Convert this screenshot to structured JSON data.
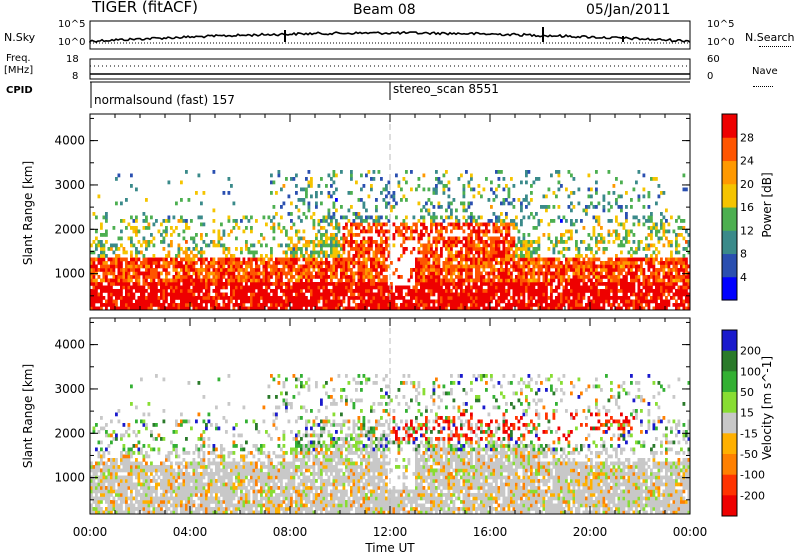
{
  "header": {
    "radar": "TIGER (fitACF)",
    "beam": "Beam 08",
    "date": "05/Jan/2011"
  },
  "params": {
    "nsky_label": "N.Sky",
    "nsearch_label": "N.Search",
    "nsky_ticks": [
      "10^5",
      "10^0"
    ],
    "nsearch_ticks": [
      "10^5",
      "10^0"
    ],
    "freq_label": "Freq.",
    "freq_unit": "[MHz]",
    "freq_ticks": [
      "18",
      "8"
    ],
    "nave_label": "Nave",
    "nave_ticks": [
      "60",
      "0"
    ],
    "cpid_label": "CPID",
    "cpid_segments": [
      {
        "name": "normalsound (fast) 157",
        "start_hour": 0
      },
      {
        "name": "stereo_scan 8551",
        "start_hour": 12
      }
    ]
  },
  "colors": {
    "power_scale": [
      "#0000ff",
      "#2a4fb0",
      "#3a8a8a",
      "#4caf50",
      "#f5c400",
      "#ff9900",
      "#ff5500",
      "#ee0000"
    ],
    "velocity_scale": [
      "#1a1acc",
      "#2a7a2a",
      "#33b033",
      "#88dd33",
      "#c8c8c8",
      "#ffb000",
      "#ff8000",
      "#ff3300",
      "#ee0000"
    ]
  },
  "chart_data": [
    {
      "type": "heatmap",
      "ylabel": "Slant Range [km]",
      "yticks": [
        "1000",
        "2000",
        "3000",
        "4000"
      ],
      "colorbar_label": "Power [dB]",
      "colorbar_ticks": [
        "4",
        "8",
        "12",
        "16",
        "20",
        "24",
        "28"
      ],
      "ylim": [
        180,
        4600
      ],
      "xlim": [
        0,
        24
      ]
    },
    {
      "type": "heatmap",
      "ylabel": "Slant Range [km]",
      "yticks": [
        "1000",
        "2000",
        "3000",
        "4000"
      ],
      "colorbar_label": "Velocity [m s^-1]",
      "colorbar_ticks": [
        "200",
        "100",
        "50",
        "15",
        "-15",
        "-50",
        "-100",
        "-200"
      ],
      "ylim": [
        180,
        4600
      ],
      "xlim": [
        0,
        24
      ]
    }
  ],
  "xaxis": {
    "label": "Time UT",
    "ticks": [
      "00:00",
      "04:00",
      "08:00",
      "12:00",
      "16:00",
      "20:00",
      "00:00"
    ]
  }
}
